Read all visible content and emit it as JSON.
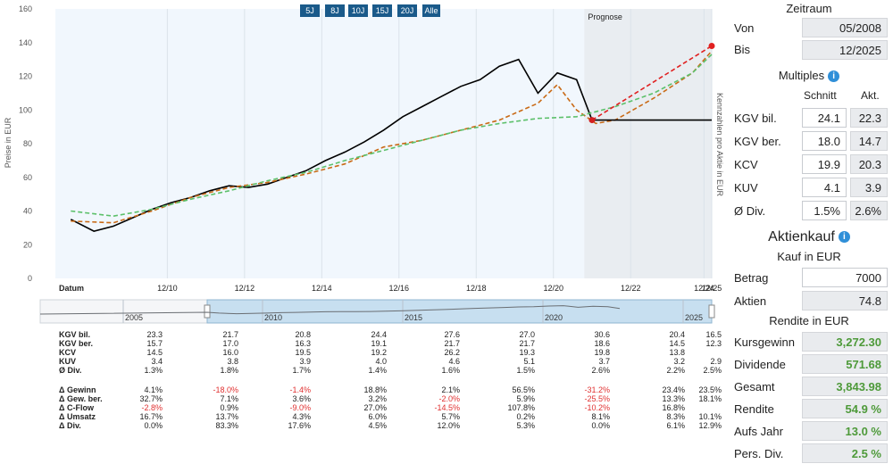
{
  "range_buttons": [
    "5J",
    "8J",
    "10J",
    "15J",
    "20J",
    "Alle"
  ],
  "chart_data": {
    "type": "line",
    "ylabel": "Preise in EUR",
    "right_label": "Kennzahlen pro Aktie in EUR",
    "forecast_label": "Prognose",
    "xlabel": "Datum",
    "ylim": [
      0,
      160
    ],
    "y_ticks": [
      0,
      20,
      40,
      60,
      80,
      100,
      120,
      140,
      160
    ],
    "x_ticks": [
      "12/10",
      "12/12",
      "12/14",
      "12/16",
      "12/18",
      "12/20",
      "12/22",
      "12/24",
      "12/25"
    ],
    "series": [
      {
        "color": "#000000",
        "style": "solid",
        "x": [
          2008.4,
          2009.0,
          2009.5,
          2010.0,
          2010.5,
          2011.0,
          2011.5,
          2012.0,
          2012.5,
          2013.0,
          2013.5,
          2014.0,
          2014.5,
          2015.0,
          2015.5,
          2016.0,
          2016.5,
          2017.0,
          2017.5,
          2018.0,
          2018.5,
          2019.0,
          2019.5,
          2020.0,
          2020.5,
          2021.0,
          2021.5,
          2021.9
        ],
        "values": [
          35,
          28,
          31,
          36,
          41,
          45,
          48,
          52,
          55,
          54,
          56,
          60,
          64,
          70,
          75,
          81,
          88,
          96,
          102,
          108,
          114,
          118,
          126,
          130,
          110,
          122,
          118,
          94
        ]
      },
      {
        "color": "#c96a16",
        "style": "dashed",
        "x": [
          2008.4,
          2009.5,
          2010.5,
          2011.5,
          2012.5,
          2013.5,
          2014.5,
          2015.5,
          2016.5,
          2017.5,
          2018.5,
          2019.5,
          2020.5,
          2021.0,
          2021.5,
          2022.0,
          2022.5,
          2023.5,
          2024.5,
          2025.0
        ],
        "values": [
          34,
          33,
          40,
          48,
          54,
          57,
          62,
          68,
          78,
          82,
          88,
          94,
          104,
          115,
          100,
          92,
          94,
          107,
          122,
          135
        ]
      },
      {
        "color": "#5cc06a",
        "style": "dashed",
        "x": [
          2008.4,
          2009.5,
          2010.5,
          2011.5,
          2012.5,
          2013.5,
          2014.5,
          2015.5,
          2016.5,
          2017.5,
          2018.5,
          2019.5,
          2020.5,
          2021.5,
          2022.5,
          2023.5,
          2024.5,
          2025.0
        ],
        "values": [
          40,
          37,
          41,
          47,
          52,
          58,
          63,
          70,
          76,
          82,
          88,
          92,
          95,
          96,
          102,
          110,
          122,
          133
        ]
      },
      {
        "color": "#e02020",
        "style": "dashed",
        "x": [
          2021.9,
          2025.0
        ],
        "values": [
          94,
          138
        ]
      },
      {
        "color": "#000000",
        "style": "solid",
        "x": [
          2021.9,
          2025.0
        ],
        "values": [
          94,
          94
        ]
      }
    ],
    "navigator_ticks": [
      "2005",
      "2010",
      "2015",
      "2020",
      "2025"
    ]
  },
  "kennzahlen": {
    "rows1": [
      {
        "label": "KGV bil.",
        "values": [
          "23.3",
          "21.7",
          "20.8",
          "24.4",
          "27.6",
          "27.0",
          "30.6",
          "20.4",
          "16.5"
        ]
      },
      {
        "label": "KGV ber.",
        "values": [
          "15.7",
          "17.0",
          "16.3",
          "19.1",
          "21.7",
          "21.7",
          "18.6",
          "14.5",
          "12.3"
        ]
      },
      {
        "label": "KCV",
        "values": [
          "14.5",
          "16.0",
          "19.5",
          "19.2",
          "26.2",
          "19.3",
          "19.8",
          "13.8",
          ""
        ]
      },
      {
        "label": "KUV",
        "values": [
          "3.4",
          "3.8",
          "3.9",
          "4.0",
          "4.6",
          "5.1",
          "3.7",
          "3.2",
          "2.9"
        ]
      },
      {
        "label": "Ø Div.",
        "values": [
          "1.3%",
          "1.8%",
          "1.7%",
          "1.4%",
          "1.6%",
          "1.5%",
          "2.6%",
          "2.2%",
          "2.5%"
        ]
      }
    ],
    "rows2": [
      {
        "label": "Δ Gewinn",
        "values": [
          "4.1%",
          "-18.0%",
          "-1.4%",
          "18.8%",
          "2.1%",
          "56.5%",
          "-31.2%",
          "23.4%",
          "23.5%"
        ]
      },
      {
        "label": "Δ Gew. ber.",
        "values": [
          "32.7%",
          "7.1%",
          "3.6%",
          "3.2%",
          "-2.0%",
          "5.9%",
          "-25.5%",
          "13.3%",
          "18.1%"
        ]
      },
      {
        "label": "Δ C-Flow",
        "values": [
          "-2.8%",
          "0.9%",
          "-9.0%",
          "27.0%",
          "-14.5%",
          "107.8%",
          "-10.2%",
          "16.8%",
          ""
        ]
      },
      {
        "label": "Δ Umsatz",
        "values": [
          "16.7%",
          "13.7%",
          "4.3%",
          "6.0%",
          "5.7%",
          "0.2%",
          "8.1%",
          "8.3%",
          "10.1%"
        ]
      },
      {
        "label": "Δ Div.",
        "values": [
          "0.0%",
          "83.3%",
          "17.6%",
          "4.5%",
          "12.0%",
          "5.3%",
          "0.0%",
          "6.1%",
          "12.9%"
        ]
      }
    ]
  },
  "panel": {
    "zeitraum_title": "Zeitraum",
    "von_label": "Von",
    "von_value": "05/2008",
    "bis_label": "Bis",
    "bis_value": "12/2025",
    "multiples_title": "Multiples",
    "col_schnitt": "Schnitt",
    "col_akt": "Akt.",
    "multiples": [
      {
        "label": "KGV bil.",
        "schnitt": "24.1",
        "akt": "22.3"
      },
      {
        "label": "KGV ber.",
        "schnitt": "18.0",
        "akt": "14.7"
      },
      {
        "label": "KCV",
        "schnitt": "19.9",
        "akt": "20.3"
      },
      {
        "label": "KUV",
        "schnitt": "4.1",
        "akt": "3.9"
      },
      {
        "label": "Ø Div.",
        "schnitt": "1.5%",
        "akt": "2.6%"
      }
    ],
    "aktienkauf_title": "Aktienkauf",
    "kauf_subtitle": "Kauf in EUR",
    "betrag_label": "Betrag",
    "betrag_value": "7000",
    "aktien_label": "Aktien",
    "aktien_value": "74.8",
    "rendite_title": "Rendite in EUR",
    "rendite": [
      {
        "label": "Kursgewinn",
        "value": "3,272.30"
      },
      {
        "label": "Dividende",
        "value": "571.68"
      },
      {
        "label": "Gesamt",
        "value": "3,843.98"
      },
      {
        "label": "Rendite",
        "value": "54.9 %"
      },
      {
        "label": "Aufs Jahr",
        "value": "13.0 %"
      },
      {
        "label": "Pers. Div.",
        "value": "2.5 %"
      }
    ]
  }
}
